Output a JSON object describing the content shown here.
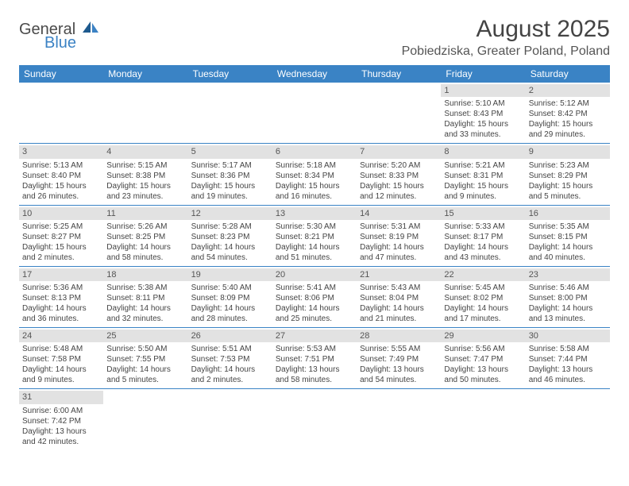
{
  "logo": {
    "general": "General",
    "blue": "Blue"
  },
  "title": "August 2025",
  "location": "Pobiedziska, Greater Poland, Poland",
  "colors": {
    "header_bg": "#3a83c5",
    "header_fg": "#ffffff",
    "daynum_bg": "#e2e2e2",
    "border": "#3a83c5",
    "text": "#444444",
    "logo_gray": "#4a4a4a",
    "logo_blue": "#3b82c4"
  },
  "typography": {
    "title_fontsize": 30,
    "location_fontsize": 16,
    "weekday_fontsize": 12,
    "cell_fontsize": 10,
    "daynum_fontsize": 11
  },
  "weekdays": [
    "Sunday",
    "Monday",
    "Tuesday",
    "Wednesday",
    "Thursday",
    "Friday",
    "Saturday"
  ],
  "weeks": [
    [
      null,
      null,
      null,
      null,
      null,
      {
        "n": "1",
        "sr": "Sunrise: 5:10 AM",
        "ss": "Sunset: 8:43 PM",
        "d1": "Daylight: 15 hours",
        "d2": "and 33 minutes."
      },
      {
        "n": "2",
        "sr": "Sunrise: 5:12 AM",
        "ss": "Sunset: 8:42 PM",
        "d1": "Daylight: 15 hours",
        "d2": "and 29 minutes."
      }
    ],
    [
      {
        "n": "3",
        "sr": "Sunrise: 5:13 AM",
        "ss": "Sunset: 8:40 PM",
        "d1": "Daylight: 15 hours",
        "d2": "and 26 minutes."
      },
      {
        "n": "4",
        "sr": "Sunrise: 5:15 AM",
        "ss": "Sunset: 8:38 PM",
        "d1": "Daylight: 15 hours",
        "d2": "and 23 minutes."
      },
      {
        "n": "5",
        "sr": "Sunrise: 5:17 AM",
        "ss": "Sunset: 8:36 PM",
        "d1": "Daylight: 15 hours",
        "d2": "and 19 minutes."
      },
      {
        "n": "6",
        "sr": "Sunrise: 5:18 AM",
        "ss": "Sunset: 8:34 PM",
        "d1": "Daylight: 15 hours",
        "d2": "and 16 minutes."
      },
      {
        "n": "7",
        "sr": "Sunrise: 5:20 AM",
        "ss": "Sunset: 8:33 PM",
        "d1": "Daylight: 15 hours",
        "d2": "and 12 minutes."
      },
      {
        "n": "8",
        "sr": "Sunrise: 5:21 AM",
        "ss": "Sunset: 8:31 PM",
        "d1": "Daylight: 15 hours",
        "d2": "and 9 minutes."
      },
      {
        "n": "9",
        "sr": "Sunrise: 5:23 AM",
        "ss": "Sunset: 8:29 PM",
        "d1": "Daylight: 15 hours",
        "d2": "and 5 minutes."
      }
    ],
    [
      {
        "n": "10",
        "sr": "Sunrise: 5:25 AM",
        "ss": "Sunset: 8:27 PM",
        "d1": "Daylight: 15 hours",
        "d2": "and 2 minutes."
      },
      {
        "n": "11",
        "sr": "Sunrise: 5:26 AM",
        "ss": "Sunset: 8:25 PM",
        "d1": "Daylight: 14 hours",
        "d2": "and 58 minutes."
      },
      {
        "n": "12",
        "sr": "Sunrise: 5:28 AM",
        "ss": "Sunset: 8:23 PM",
        "d1": "Daylight: 14 hours",
        "d2": "and 54 minutes."
      },
      {
        "n": "13",
        "sr": "Sunrise: 5:30 AM",
        "ss": "Sunset: 8:21 PM",
        "d1": "Daylight: 14 hours",
        "d2": "and 51 minutes."
      },
      {
        "n": "14",
        "sr": "Sunrise: 5:31 AM",
        "ss": "Sunset: 8:19 PM",
        "d1": "Daylight: 14 hours",
        "d2": "and 47 minutes."
      },
      {
        "n": "15",
        "sr": "Sunrise: 5:33 AM",
        "ss": "Sunset: 8:17 PM",
        "d1": "Daylight: 14 hours",
        "d2": "and 43 minutes."
      },
      {
        "n": "16",
        "sr": "Sunrise: 5:35 AM",
        "ss": "Sunset: 8:15 PM",
        "d1": "Daylight: 14 hours",
        "d2": "and 40 minutes."
      }
    ],
    [
      {
        "n": "17",
        "sr": "Sunrise: 5:36 AM",
        "ss": "Sunset: 8:13 PM",
        "d1": "Daylight: 14 hours",
        "d2": "and 36 minutes."
      },
      {
        "n": "18",
        "sr": "Sunrise: 5:38 AM",
        "ss": "Sunset: 8:11 PM",
        "d1": "Daylight: 14 hours",
        "d2": "and 32 minutes."
      },
      {
        "n": "19",
        "sr": "Sunrise: 5:40 AM",
        "ss": "Sunset: 8:09 PM",
        "d1": "Daylight: 14 hours",
        "d2": "and 28 minutes."
      },
      {
        "n": "20",
        "sr": "Sunrise: 5:41 AM",
        "ss": "Sunset: 8:06 PM",
        "d1": "Daylight: 14 hours",
        "d2": "and 25 minutes."
      },
      {
        "n": "21",
        "sr": "Sunrise: 5:43 AM",
        "ss": "Sunset: 8:04 PM",
        "d1": "Daylight: 14 hours",
        "d2": "and 21 minutes."
      },
      {
        "n": "22",
        "sr": "Sunrise: 5:45 AM",
        "ss": "Sunset: 8:02 PM",
        "d1": "Daylight: 14 hours",
        "d2": "and 17 minutes."
      },
      {
        "n": "23",
        "sr": "Sunrise: 5:46 AM",
        "ss": "Sunset: 8:00 PM",
        "d1": "Daylight: 14 hours",
        "d2": "and 13 minutes."
      }
    ],
    [
      {
        "n": "24",
        "sr": "Sunrise: 5:48 AM",
        "ss": "Sunset: 7:58 PM",
        "d1": "Daylight: 14 hours",
        "d2": "and 9 minutes."
      },
      {
        "n": "25",
        "sr": "Sunrise: 5:50 AM",
        "ss": "Sunset: 7:55 PM",
        "d1": "Daylight: 14 hours",
        "d2": "and 5 minutes."
      },
      {
        "n": "26",
        "sr": "Sunrise: 5:51 AM",
        "ss": "Sunset: 7:53 PM",
        "d1": "Daylight: 14 hours",
        "d2": "and 2 minutes."
      },
      {
        "n": "27",
        "sr": "Sunrise: 5:53 AM",
        "ss": "Sunset: 7:51 PM",
        "d1": "Daylight: 13 hours",
        "d2": "and 58 minutes."
      },
      {
        "n": "28",
        "sr": "Sunrise: 5:55 AM",
        "ss": "Sunset: 7:49 PM",
        "d1": "Daylight: 13 hours",
        "d2": "and 54 minutes."
      },
      {
        "n": "29",
        "sr": "Sunrise: 5:56 AM",
        "ss": "Sunset: 7:47 PM",
        "d1": "Daylight: 13 hours",
        "d2": "and 50 minutes."
      },
      {
        "n": "30",
        "sr": "Sunrise: 5:58 AM",
        "ss": "Sunset: 7:44 PM",
        "d1": "Daylight: 13 hours",
        "d2": "and 46 minutes."
      }
    ],
    [
      {
        "n": "31",
        "sr": "Sunrise: 6:00 AM",
        "ss": "Sunset: 7:42 PM",
        "d1": "Daylight: 13 hours",
        "d2": "and 42 minutes."
      },
      null,
      null,
      null,
      null,
      null,
      null
    ]
  ]
}
